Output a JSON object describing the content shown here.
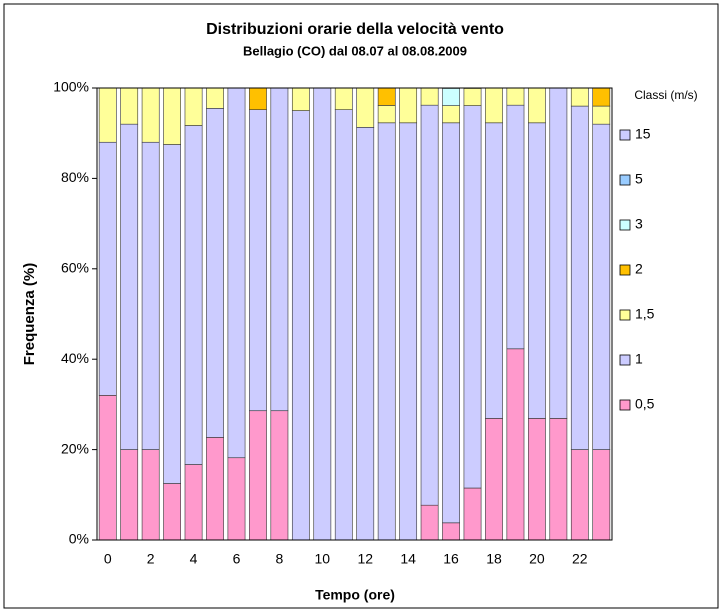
{
  "chart_data": {
    "type": "stacked_bar",
    "title": "Distribuzioni orarie della velocità vento",
    "subtitle": "Bellagio (CO) dal 08.07 al 08.08.2009",
    "x_label": "Tempo (ore)",
    "y_label": "Frequenza (%)",
    "legend_title": "Classi (m/s)",
    "legend": "right",
    "categories": [
      "0",
      null,
      "2",
      null,
      "4",
      null,
      "6",
      null,
      "8",
      null,
      "10",
      null,
      "12",
      null,
      "14",
      null,
      "16",
      null,
      "18",
      null,
      "20",
      null,
      "22",
      null
    ],
    "ylim": [
      0,
      100
    ],
    "yticks": [
      {
        "value": 0,
        "label": "0%"
      },
      {
        "value": 20,
        "label": "20%"
      },
      {
        "value": 40,
        "label": "40%"
      },
      {
        "value": 60,
        "label": "60%"
      },
      {
        "value": 80,
        "label": "80%"
      },
      {
        "value": 100,
        "label": "100%"
      }
    ],
    "series": [
      {
        "name": "0,5",
        "color": "#ff99cc",
        "values": [
          32,
          20,
          20,
          12.5,
          16.7,
          22.7,
          18.2,
          28.6,
          28.6,
          0,
          0,
          0,
          0,
          0,
          0,
          7.7,
          3.8,
          11.5,
          26.9,
          42.3,
          26.9,
          26.9,
          20,
          20
        ]
      },
      {
        "name": "1",
        "color": "#ccccff",
        "values": [
          56,
          72,
          68,
          75,
          75,
          72.8,
          81.8,
          66.6,
          71.4,
          95,
          100,
          95.2,
          91.3,
          92.3,
          92.3,
          88.5,
          88.5,
          84.6,
          65.4,
          53.9,
          65.4,
          73.1,
          76,
          72
        ]
      },
      {
        "name": "1,5",
        "color": "#ffff99",
        "values": [
          12,
          8,
          12,
          12.5,
          8.3,
          4.5,
          0,
          0,
          0,
          5,
          0,
          4.8,
          8.7,
          3.85,
          7.7,
          3.8,
          3.8,
          3.8,
          7.7,
          3.8,
          7.7,
          0,
          4,
          4
        ]
      },
      {
        "name": "2",
        "color": "#ffc000",
        "values": [
          0,
          0,
          0,
          0,
          0,
          0,
          0,
          4.8,
          0,
          0,
          0,
          0,
          0,
          3.85,
          0,
          0,
          0,
          0,
          0,
          0,
          0,
          0,
          0,
          4
        ]
      },
      {
        "name": "3",
        "color": "#ccffff",
        "values": [
          0,
          0,
          0,
          0,
          0,
          0,
          0,
          0,
          0,
          0,
          0,
          0,
          0,
          0,
          0,
          0,
          3.8,
          0,
          0,
          0,
          0,
          0,
          0,
          0
        ]
      },
      {
        "name": "5",
        "color": "#99ccff",
        "values": [
          0,
          0,
          0,
          0,
          0,
          0,
          0,
          0,
          0,
          0,
          0,
          0,
          0,
          0,
          0,
          0,
          0,
          0,
          0,
          0,
          0,
          0,
          0,
          0
        ]
      },
      {
        "name": "15",
        "color": "#ccccff",
        "values": [
          0,
          0,
          0,
          0,
          0,
          0,
          0,
          0,
          0,
          0,
          0,
          0,
          0,
          0,
          0,
          0,
          0,
          0,
          0,
          0,
          0,
          0,
          0,
          0
        ]
      }
    ]
  }
}
